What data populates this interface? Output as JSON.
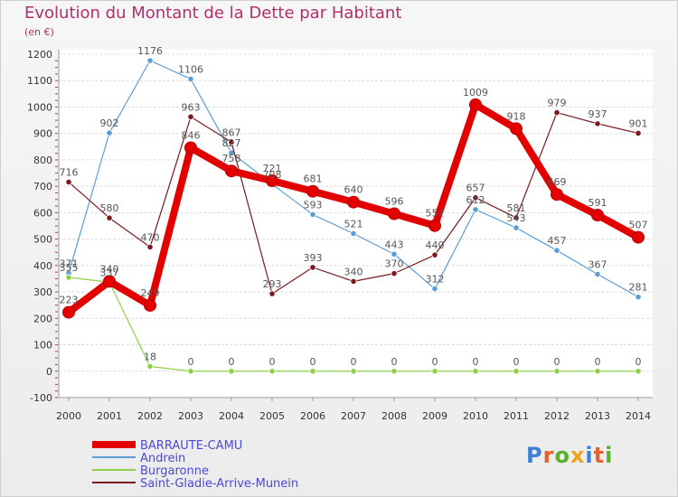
{
  "title": "Evolution du Montant de la Dette par Habitant",
  "unit": "(en €)",
  "logo": {
    "text": "Proxiti",
    "letter_colors": [
      "#3d7fd6",
      "#e6622a",
      "#5ab02e",
      "#f2a31a",
      "#3d7fd6",
      "#e6622a",
      "#5ab02e"
    ]
  },
  "chart_data": {
    "type": "line",
    "title": "Evolution du Montant de la Dette par Habitant",
    "ylabel": "(en €)",
    "xlabel": "",
    "ylim": [
      -100,
      1200
    ],
    "ytick_step": 100,
    "grid": "horizontal",
    "legend_position": "bottom-left",
    "x": [
      "2000",
      "2001",
      "2002",
      "2003",
      "2004",
      "2005",
      "2006",
      "2007",
      "2008",
      "2009",
      "2010",
      "2011",
      "2012",
      "2013",
      "2014"
    ],
    "series": [
      {
        "name": "BARRAUTE-CAMU",
        "color": "#e30000",
        "line_width": 8,
        "marker_radius": 6.5,
        "values": [
          223,
          340,
          249,
          846,
          758,
          721,
          681,
          640,
          596,
          551,
          1009,
          918,
          669,
          591,
          507
        ]
      },
      {
        "name": "Andrein",
        "color": "#5a9ed6",
        "line_width": 1.2,
        "marker_radius": 3.2,
        "values": [
          371,
          902,
          1176,
          1106,
          827,
          708,
          593,
          521,
          443,
          312,
          612,
          543,
          457,
          367,
          281
        ]
      },
      {
        "name": "Burgaronne",
        "color": "#8fd048",
        "line_width": 1.2,
        "marker_radius": 3.2,
        "values": [
          355,
          337,
          18,
          0,
          0,
          0,
          0,
          0,
          0,
          0,
          0,
          0,
          0,
          0,
          0
        ]
      },
      {
        "name": "Saint-Gladie-Arrive-Munein",
        "color": "#7a1a1e",
        "line_width": 1.2,
        "marker_radius": 3.2,
        "values": [
          716,
          580,
          470,
          963,
          867,
          293,
          393,
          340,
          370,
          440,
          657,
          581,
          979,
          937,
          901
        ]
      }
    ]
  }
}
